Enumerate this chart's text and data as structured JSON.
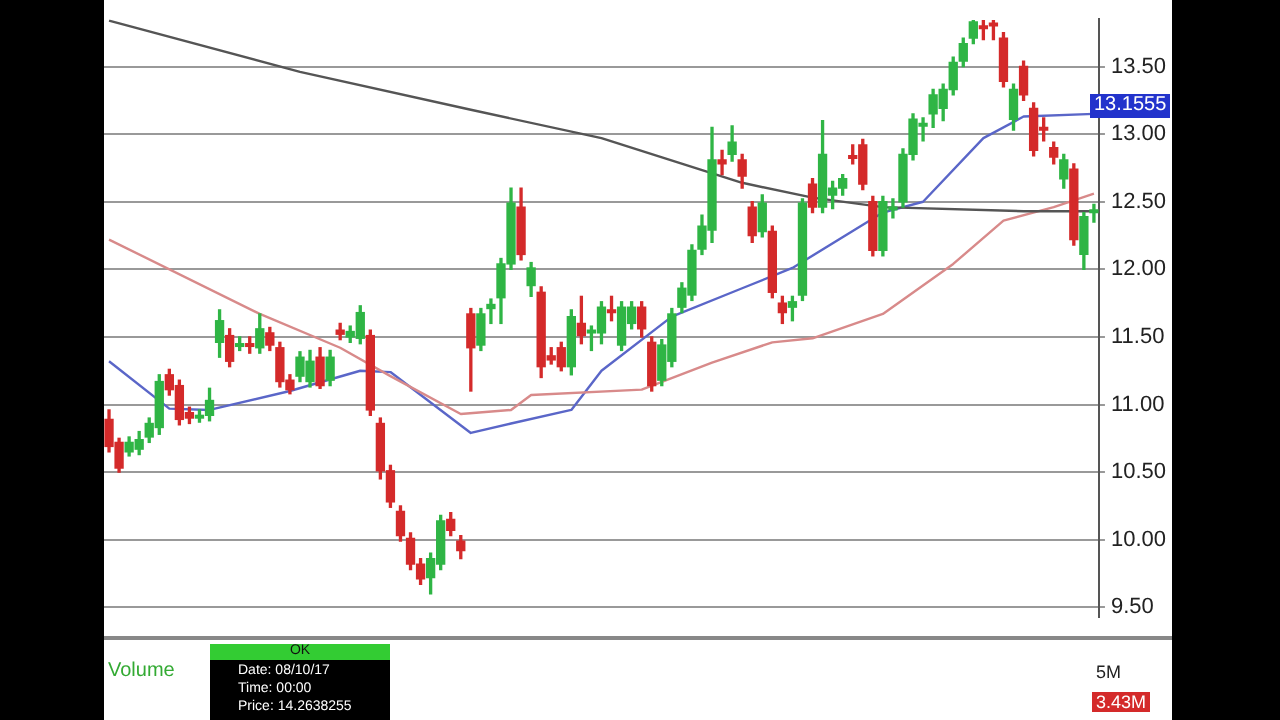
{
  "chart_data": {
    "type": "candlestick",
    "categories": [
      null,
      null,
      null,
      null,
      null,
      null,
      null,
      null,
      null,
      null,
      null,
      null,
      null,
      null,
      null,
      null,
      null,
      null,
      null,
      null,
      null,
      null,
      null,
      null,
      null,
      null,
      null,
      null,
      null,
      null,
      null,
      null,
      null,
      null,
      null,
      null,
      null,
      null,
      null,
      null,
      null,
      null,
      null,
      null,
      null,
      null,
      null,
      null,
      null,
      null,
      null,
      null,
      null,
      null,
      null,
      null,
      null,
      null,
      null,
      null,
      null,
      null,
      null,
      null,
      null,
      null,
      null,
      null,
      null,
      null,
      null,
      null,
      null,
      null,
      null,
      null,
      null,
      null,
      null,
      null,
      null,
      null,
      null,
      null,
      null,
      null,
      null,
      null,
      null,
      null,
      null,
      null,
      null,
      null,
      null,
      null,
      null,
      null,
      null
    ],
    "ohlc": [
      [
        10.89,
        10.96,
        10.65,
        10.69
      ],
      [
        10.72,
        10.75,
        10.5,
        10.53
      ],
      [
        10.65,
        10.76,
        10.62,
        10.72
      ],
      [
        10.67,
        10.8,
        10.63,
        10.74
      ],
      [
        10.76,
        10.9,
        10.72,
        10.86
      ],
      [
        10.83,
        11.22,
        10.78,
        11.17
      ],
      [
        11.22,
        11.26,
        11.07,
        11.11
      ],
      [
        11.14,
        11.18,
        10.85,
        10.89
      ],
      [
        10.94,
        10.98,
        10.86,
        10.9
      ],
      [
        10.9,
        10.96,
        10.87,
        10.92
      ],
      [
        10.92,
        11.12,
        10.88,
        11.03
      ],
      [
        11.46,
        11.7,
        11.35,
        11.62
      ],
      [
        11.51,
        11.56,
        11.28,
        11.32
      ],
      [
        11.43,
        11.5,
        11.4,
        11.45
      ],
      [
        11.45,
        11.5,
        11.38,
        11.43
      ],
      [
        11.42,
        11.67,
        11.38,
        11.56
      ],
      [
        11.53,
        11.57,
        11.4,
        11.44
      ],
      [
        11.42,
        11.46,
        11.13,
        11.17
      ],
      [
        11.18,
        11.22,
        11.08,
        11.11
      ],
      [
        11.21,
        11.39,
        11.17,
        11.35
      ],
      [
        11.17,
        11.4,
        11.13,
        11.32
      ],
      [
        11.35,
        11.42,
        11.12,
        11.14
      ],
      [
        11.18,
        11.4,
        11.14,
        11.35
      ],
      [
        11.55,
        11.6,
        11.48,
        11.52
      ],
      [
        11.5,
        11.58,
        11.46,
        11.54
      ],
      [
        11.49,
        11.73,
        11.45,
        11.68
      ],
      [
        11.51,
        11.55,
        10.92,
        10.96
      ],
      [
        10.86,
        10.9,
        10.45,
        10.51
      ],
      [
        10.51,
        10.55,
        10.24,
        10.28
      ],
      [
        10.21,
        10.25,
        9.99,
        10.03
      ],
      [
        10.01,
        10.05,
        9.78,
        9.82
      ],
      [
        9.82,
        9.86,
        9.67,
        9.71
      ],
      [
        9.72,
        9.9,
        9.6,
        9.86
      ],
      [
        9.82,
        10.18,
        9.78,
        10.14
      ],
      [
        10.15,
        10.2,
        10.03,
        10.07
      ],
      [
        9.99,
        10.03,
        9.86,
        9.92
      ],
      [
        11.67,
        11.71,
        11.1,
        11.42
      ],
      [
        11.44,
        11.71,
        11.4,
        11.67
      ],
      [
        11.71,
        11.78,
        11.6,
        11.74
      ],
      [
        11.79,
        12.08,
        11.6,
        12.04
      ],
      [
        12.04,
        12.6,
        12.0,
        12.49
      ],
      [
        12.46,
        12.6,
        12.07,
        12.11
      ],
      [
        11.88,
        12.05,
        11.8,
        12.01
      ],
      [
        11.83,
        11.87,
        11.2,
        11.28
      ],
      [
        11.36,
        11.42,
        11.3,
        11.33
      ],
      [
        11.42,
        11.46,
        11.25,
        11.28
      ],
      [
        11.28,
        11.7,
        11.22,
        11.65
      ],
      [
        11.6,
        11.8,
        11.45,
        11.51
      ],
      [
        11.53,
        11.58,
        11.4,
        11.55
      ],
      [
        11.53,
        11.76,
        11.45,
        11.72
      ],
      [
        11.7,
        11.8,
        11.62,
        11.68
      ],
      [
        11.44,
        11.76,
        11.4,
        11.72
      ],
      [
        11.6,
        11.76,
        11.56,
        11.72
      ],
      [
        11.72,
        11.76,
        11.5,
        11.56
      ],
      [
        11.46,
        11.5,
        11.1,
        11.14
      ],
      [
        11.18,
        11.48,
        11.14,
        11.44
      ],
      [
        11.32,
        11.71,
        11.28,
        11.67
      ],
      [
        11.72,
        11.9,
        11.68,
        11.86
      ],
      [
        11.81,
        12.18,
        11.77,
        12.14
      ],
      [
        12.15,
        12.4,
        12.11,
        12.32
      ],
      [
        12.29,
        13.05,
        12.2,
        12.81
      ],
      [
        12.81,
        12.88,
        12.7,
        12.78
      ],
      [
        12.85,
        13.06,
        12.8,
        12.94
      ],
      [
        12.81,
        12.85,
        12.6,
        12.69
      ],
      [
        12.46,
        12.5,
        12.2,
        12.25
      ],
      [
        12.28,
        12.55,
        12.24,
        12.49
      ],
      [
        12.28,
        12.32,
        11.79,
        11.83
      ],
      [
        11.75,
        11.8,
        11.6,
        11.68
      ],
      [
        11.72,
        11.8,
        11.62,
        11.76
      ],
      [
        11.81,
        12.52,
        11.77,
        12.49
      ],
      [
        12.63,
        12.67,
        12.42,
        12.46
      ],
      [
        12.46,
        13.1,
        12.42,
        12.85
      ],
      [
        12.55,
        12.65,
        12.45,
        12.6
      ],
      [
        12.6,
        12.7,
        12.55,
        12.67
      ],
      [
        12.84,
        12.92,
        12.78,
        12.82
      ],
      [
        12.92,
        12.96,
        12.59,
        12.63
      ],
      [
        12.5,
        12.54,
        12.1,
        12.14
      ],
      [
        12.14,
        12.54,
        12.1,
        12.5
      ],
      [
        12.44,
        12.52,
        12.38,
        12.46
      ],
      [
        12.5,
        12.89,
        12.46,
        12.85
      ],
      [
        12.85,
        13.15,
        12.81,
        13.11
      ],
      [
        13.06,
        13.12,
        12.95,
        13.08
      ],
      [
        13.15,
        13.33,
        13.05,
        13.29
      ],
      [
        13.19,
        13.37,
        13.1,
        13.33
      ],
      [
        13.33,
        13.57,
        13.29,
        13.53
      ],
      [
        13.54,
        13.71,
        13.5,
        13.67
      ],
      [
        13.71,
        13.84,
        13.67,
        13.83
      ],
      [
        13.8,
        13.84,
        13.7,
        13.78
      ],
      [
        13.82,
        13.84,
        13.7,
        13.8
      ],
      [
        13.71,
        13.75,
        13.35,
        13.39
      ],
      [
        13.11,
        13.37,
        13.03,
        13.33
      ],
      [
        13.5,
        13.54,
        13.25,
        13.29
      ],
      [
        13.19,
        13.23,
        12.84,
        12.88
      ],
      [
        13.05,
        13.12,
        12.95,
        13.03
      ],
      [
        12.9,
        12.94,
        12.78,
        12.83
      ],
      [
        12.67,
        12.85,
        12.6,
        12.81
      ],
      [
        12.74,
        12.78,
        12.18,
        12.22
      ],
      [
        12.11,
        12.42,
        12.0,
        12.39
      ],
      [
        12.42,
        12.48,
        12.35,
        12.44
      ]
    ],
    "colors": [
      "#d42a2a",
      "#d42a2a",
      "#2fb545",
      "#2fb545",
      "#2fb545",
      "#2fb545",
      "#d42a2a",
      "#d42a2a",
      "#d42a2a",
      "#2fb545",
      "#2fb545",
      "#2fb545",
      "#d42a2a",
      "#2fb545",
      "#d42a2a",
      "#2fb545",
      "#d42a2a",
      "#d42a2a",
      "#d42a2a",
      "#2fb545",
      "#2fb545",
      "#d42a2a",
      "#2fb545",
      "#d42a2a",
      "#2fb545",
      "#2fb545",
      "#d42a2a",
      "#d42a2a",
      "#d42a2a",
      "#d42a2a",
      "#d42a2a",
      "#d42a2a",
      "#2fb545",
      "#2fb545",
      "#d42a2a",
      "#d42a2a",
      "#d42a2a",
      "#2fb545",
      "#2fb545",
      "#2fb545",
      "#2fb545",
      "#d42a2a",
      "#2fb545",
      "#d42a2a",
      "#d42a2a",
      "#d42a2a",
      "#2fb545",
      "#d42a2a",
      "#2fb545",
      "#2fb545",
      "#d42a2a",
      "#2fb545",
      "#2fb545",
      "#d42a2a",
      "#d42a2a",
      "#2fb545",
      "#2fb545",
      "#2fb545",
      "#2fb545",
      "#2fb545",
      "#2fb545",
      "#d42a2a",
      "#2fb545",
      "#d42a2a",
      "#d42a2a",
      "#2fb545",
      "#d42a2a",
      "#d42a2a",
      "#2fb545",
      "#2fb545",
      "#d42a2a",
      "#2fb545",
      "#2fb545",
      "#2fb545",
      "#d42a2a",
      "#d42a2a",
      "#d42a2a",
      "#2fb545",
      "#2fb545",
      "#2fb545",
      "#2fb545",
      "#2fb545",
      "#2fb545",
      "#2fb545",
      "#2fb545",
      "#2fb545",
      "#2fb545",
      "#d42a2a",
      "#d42a2a",
      "#d42a2a",
      "#2fb545",
      "#d42a2a",
      "#d42a2a",
      "#d42a2a",
      "#d42a2a",
      "#2fb545",
      "#d42a2a",
      "#2fb545",
      "#2fb545"
    ],
    "series": [
      {
        "type": "line",
        "color": "#555555",
        "values": [
          13.84,
          null,
          null,
          null,
          null,
          null,
          null,
          null,
          null,
          null,
          null,
          null,
          null,
          null,
          null,
          null,
          null,
          null,
          null,
          13.46,
          null,
          null,
          null,
          null,
          null,
          null,
          null,
          null,
          null,
          null,
          null,
          null,
          null,
          null,
          null,
          null,
          13.18,
          null,
          null,
          null,
          null,
          null,
          null,
          null,
          null,
          null,
          null,
          null,
          null,
          12.97,
          null,
          null,
          null,
          null,
          null,
          null,
          null,
          null,
          null,
          null,
          null,
          null,
          null,
          12.64,
          null,
          null,
          null,
          null,
          null,
          null,
          12.53,
          null,
          null,
          null,
          null,
          null,
          null,
          12.46,
          null,
          null,
          null,
          null,
          null,
          null,
          null,
          null,
          null,
          null,
          null,
          null,
          null,
          12.43,
          null,
          null,
          null,
          null,
          null,
          null,
          12.43
        ]
      },
      {
        "type": "line",
        "color": "#d88a8a",
        "values": [
          12.22,
          null,
          null,
          null,
          null,
          null,
          null,
          null,
          null,
          null,
          null,
          null,
          null,
          null,
          null,
          11.67,
          null,
          null,
          null,
          null,
          null,
          null,
          null,
          11.42,
          null,
          null,
          null,
          null,
          11.21,
          null,
          null,
          null,
          null,
          null,
          null,
          10.93,
          null,
          null,
          null,
          null,
          10.96,
          null,
          11.07,
          null,
          null,
          null,
          null,
          null,
          null,
          null,
          null,
          null,
          null,
          11.11,
          null,
          null,
          null,
          null,
          null,
          null,
          11.31,
          null,
          null,
          null,
          null,
          null,
          11.46,
          null,
          null,
          null,
          11.49,
          null,
          null,
          null,
          null,
          null,
          null,
          11.67,
          null,
          null,
          null,
          null,
          null,
          null,
          12.04,
          null,
          null,
          null,
          null,
          12.36,
          null,
          null,
          null,
          null,
          12.46,
          null,
          null,
          null,
          12.56
        ]
      },
      {
        "type": "line",
        "color": "#5a66c8",
        "values": [
          11.32,
          null,
          null,
          null,
          null,
          null,
          10.97,
          null,
          null,
          null,
          10.96,
          null,
          null,
          null,
          null,
          null,
          null,
          null,
          11.1,
          null,
          null,
          null,
          null,
          null,
          null,
          11.25,
          null,
          null,
          11.24,
          null,
          null,
          null,
          null,
          null,
          null,
          null,
          10.79,
          null,
          null,
          null,
          10.86,
          null,
          null,
          null,
          null,
          null,
          10.96,
          null,
          null,
          11.25,
          null,
          null,
          null,
          null,
          null,
          null,
          11.65,
          null,
          null,
          null,
          null,
          null,
          null,
          11.86,
          null,
          null,
          null,
          null,
          12.01,
          null,
          null,
          null,
          null,
          null,
          null,
          null,
          null,
          12.42,
          null,
          null,
          null,
          12.5,
          null,
          null,
          null,
          null,
          null,
          12.97,
          null,
          null,
          null,
          13.13,
          null,
          null,
          null,
          null,
          null,
          null,
          13.15
        ]
      }
    ],
    "ylim": [
      9.43,
      13.85
    ],
    "yticks": [
      {
        "value": 9.5,
        "label": "9.50"
      },
      {
        "value": 10,
        "label": "10.00"
      },
      {
        "value": 10.5,
        "label": "10.50"
      },
      {
        "value": 11,
        "label": "11.00"
      },
      {
        "value": 11.5,
        "label": "11.50"
      },
      {
        "value": 12,
        "label": "12.00"
      },
      {
        "value": 12.5,
        "label": "12.50"
      },
      {
        "value": 13,
        "label": "13.00"
      },
      {
        "value": 13.5,
        "label": "13.50"
      }
    ],
    "tick_labels": "y",
    "grid": "y",
    "legend": false,
    "annotations": [
      "13.1555",
      "OK",
      "Date: 08/10/17",
      "Time: 00:00",
      "Price: 14.2638255",
      "Volume",
      "5M",
      "3.43M"
    ]
  }
}
